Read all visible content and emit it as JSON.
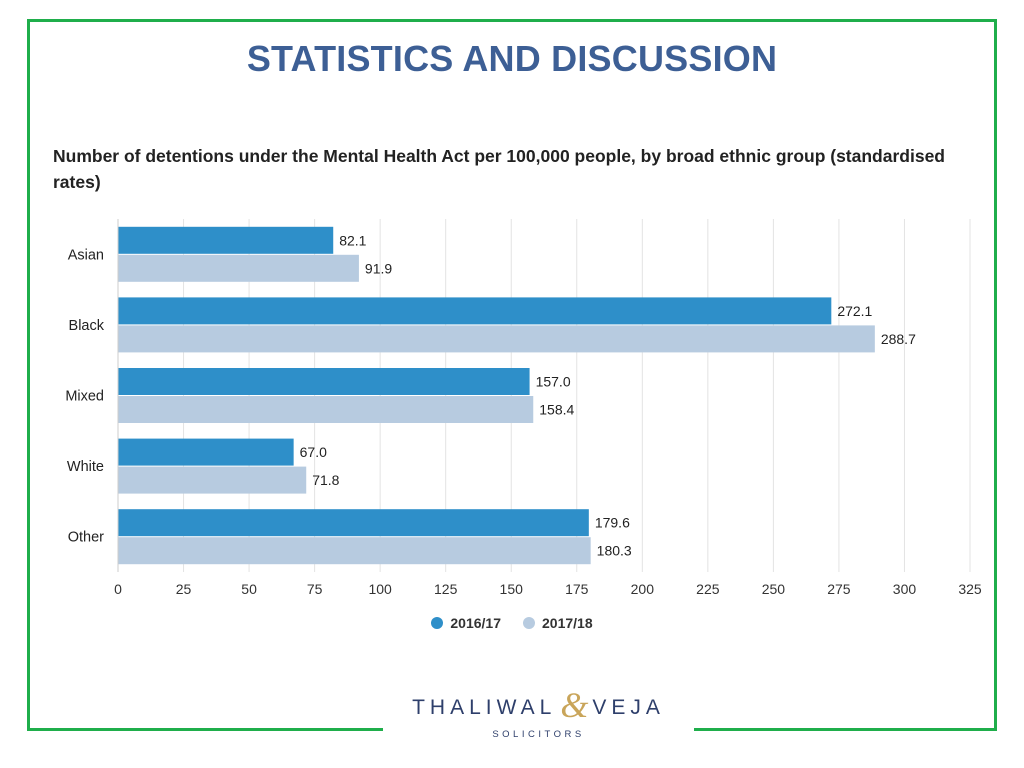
{
  "slide_title": "STATISTICS AND DISCUSSION",
  "colors": {
    "border": "#1fae4b",
    "title": "#3d5f95",
    "series_2016": "#2e8fc9",
    "series_2017": "#b7cbe0",
    "logo_text": "#2e3f6b",
    "logo_amp": "#c9a55a"
  },
  "chart_data": {
    "type": "bar",
    "orientation": "horizontal",
    "title": "Number of detentions under the Mental Health Act per 100,000 people, by broad ethnic group (standardised rates)",
    "categories": [
      "Asian",
      "Black",
      "Mixed",
      "White",
      "Other"
    ],
    "series": [
      {
        "name": "2016/17",
        "values": [
          82.1,
          272.1,
          157.0,
          67.0,
          179.6
        ],
        "labels": [
          "82.1",
          "272.1",
          "157.0",
          "67.0",
          "179.6"
        ]
      },
      {
        "name": "2017/18",
        "values": [
          91.9,
          288.7,
          158.4,
          71.8,
          180.3
        ],
        "labels": [
          "91.9",
          "288.7",
          "158.4",
          "71.8",
          "180.3"
        ]
      }
    ],
    "xlim": [
      0,
      325
    ],
    "xticks": [
      "0",
      "25",
      "50",
      "75",
      "100",
      "125",
      "150",
      "175",
      "200",
      "225",
      "250",
      "275",
      "300",
      "325"
    ],
    "grid": true,
    "legend_position": "bottom"
  },
  "logo": {
    "left": "THALIWAL",
    "amp": "&",
    "right": "VEJA",
    "sub": "SOLICITORS"
  }
}
